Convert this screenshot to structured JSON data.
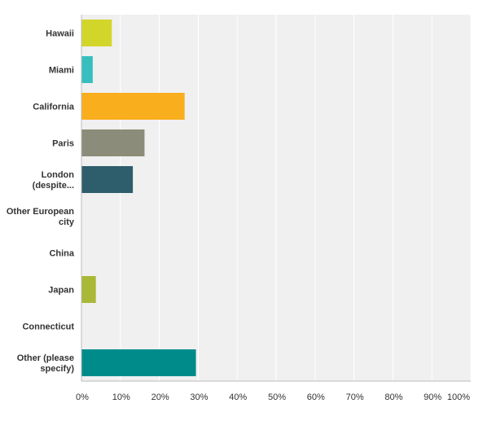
{
  "chart_data": {
    "type": "bar",
    "orientation": "horizontal",
    "categories": [
      [
        "Hawaii"
      ],
      [
        "Miami"
      ],
      [
        "California"
      ],
      [
        "Paris"
      ],
      [
        "London",
        "(despite..."
      ],
      [
        "Other European",
        "city"
      ],
      [
        "China"
      ],
      [
        "Japan"
      ],
      [
        "Connecticut"
      ],
      [
        "Other (please",
        "specify)"
      ]
    ],
    "values": [
      7.8,
      2.9,
      26.5,
      16.2,
      13.2,
      0,
      0,
      3.7,
      0,
      29.4
    ],
    "colors": [
      "#d3d62a",
      "#37bfbf",
      "#f9ae1e",
      "#8c8c7a",
      "#2e5d6b",
      "#cccccc",
      "#cccccc",
      "#a9b837",
      "#cccccc",
      "#008b8b"
    ],
    "xticks": [
      "0%",
      "10%",
      "20%",
      "30%",
      "40%",
      "50%",
      "60%",
      "70%",
      "80%",
      "90%",
      "100%"
    ],
    "xlim": [
      0,
      100
    ],
    "grid": true,
    "legend": "none",
    "title": "",
    "xlabel": "",
    "ylabel": ""
  }
}
